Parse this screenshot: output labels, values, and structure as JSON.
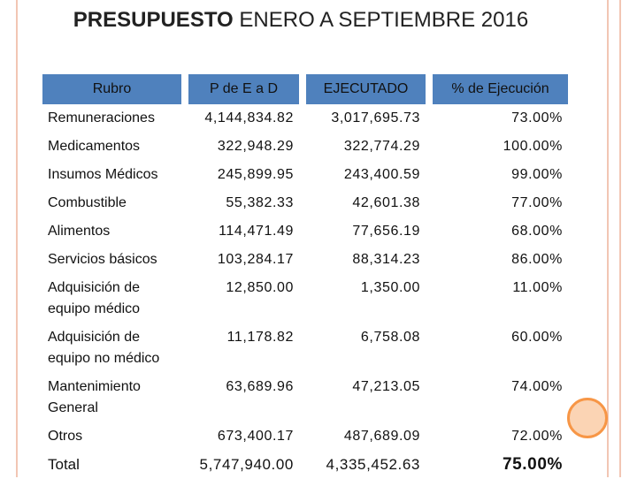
{
  "title": {
    "bold": "PRESUPUESTO",
    "rest": "ENERO A  SEPTIEMBRE 2016"
  },
  "table": {
    "header": [
      "Rubro",
      "P de E a D",
      "EJECUTADO",
      "% de Ejecución"
    ],
    "rows": [
      [
        "Remuneraciones",
        "4,144,834.82",
        "3,017,695.73",
        "73.00%"
      ],
      [
        "Medicamentos",
        "322,948.29",
        "322,774.29",
        "100.00%"
      ],
      [
        "Insumos Médicos",
        "245,899.95",
        "243,400.59",
        "99.00%"
      ],
      [
        "Combustible",
        "55,382.33",
        "42,601.38",
        "77.00%"
      ],
      [
        "Alimentos",
        "114,471.49",
        "77,656.19",
        "68.00%"
      ],
      [
        "Servicios básicos",
        "103,284.17",
        "88,314.23",
        "86.00%"
      ],
      [
        "Adquisición de equipo médico",
        "12,850.00",
        "1,350.00",
        "11.00%"
      ],
      [
        "Adquisición de equipo no médico",
        "11,178.82",
        "6,758.08",
        "60.00%"
      ],
      [
        "Mantenimiento General",
        "63,689.96",
        "47,213.05",
        "74.00%"
      ],
      [
        "Otros",
        "673,400.17",
        "487,689.09",
        "72.00%"
      ],
      [
        "Total",
        "5,747,940.00",
        "4,335,452.63",
        "75.00%"
      ]
    ]
  }
}
